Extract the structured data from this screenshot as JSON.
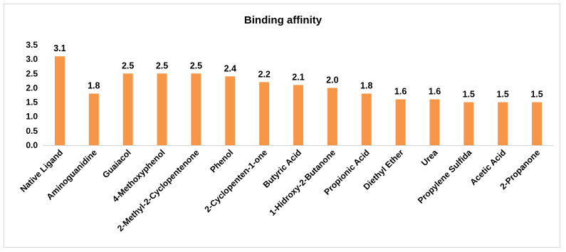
{
  "chart_data": {
    "type": "bar",
    "title": "Binding affinity",
    "xlabel": "",
    "ylabel": "",
    "ylim": [
      0,
      3.5
    ],
    "ytick_step": 0.5,
    "grid": false,
    "legend": "none",
    "bar_color": "#F79646",
    "categories": [
      "Native Ligand",
      "Aminoguanidine",
      "Guaiacol",
      "4-Methoxyphenol",
      "2-Methyl-2-Cyclopentenone",
      "Phenol",
      "2-Cyclopenten-1-one",
      "Butyric Acid",
      "1-Hidroxy-2-Butanone",
      "Propionic Acid",
      "Diethyl Ether",
      "Urea",
      "Propylene Sulfida",
      "Acetic Acid",
      "2-Propanone"
    ],
    "values": [
      3.1,
      1.8,
      2.5,
      2.5,
      2.5,
      2.4,
      2.2,
      2.1,
      2.0,
      1.8,
      1.6,
      1.6,
      1.5,
      1.5,
      1.5
    ],
    "data_labels": [
      "3.1",
      "1.8",
      "2.5",
      "2.5",
      "2.5",
      "2.4",
      "2.2",
      "2.1",
      "2.0",
      "1.8",
      "1.6",
      "1.6",
      "1.5",
      "1.5",
      "1.5"
    ],
    "y_tick_labels": [
      "0.0",
      "0.5",
      "1.0",
      "1.5",
      "2.0",
      "2.5",
      "3.0",
      "3.5"
    ]
  }
}
